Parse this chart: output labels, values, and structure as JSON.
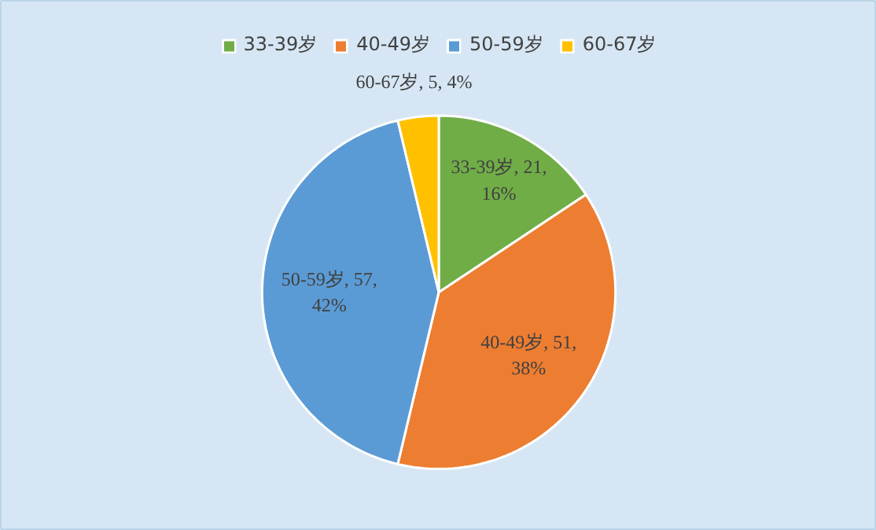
{
  "chart_data": {
    "type": "pie",
    "categories": [
      "33-39岁",
      "40-49岁",
      "50-59岁",
      "60-67岁"
    ],
    "values": [
      21,
      51,
      57,
      5
    ],
    "colors": [
      "#70ad47",
      "#ed7d31",
      "#5b9bd5",
      "#ffc000"
    ],
    "value_labels": [
      "33-39岁, 21, 16%",
      "40-49岁, 51, 38%",
      "50-59岁, 57, 42%",
      "60-67岁, 5, 4%"
    ],
    "legend": "top"
  }
}
